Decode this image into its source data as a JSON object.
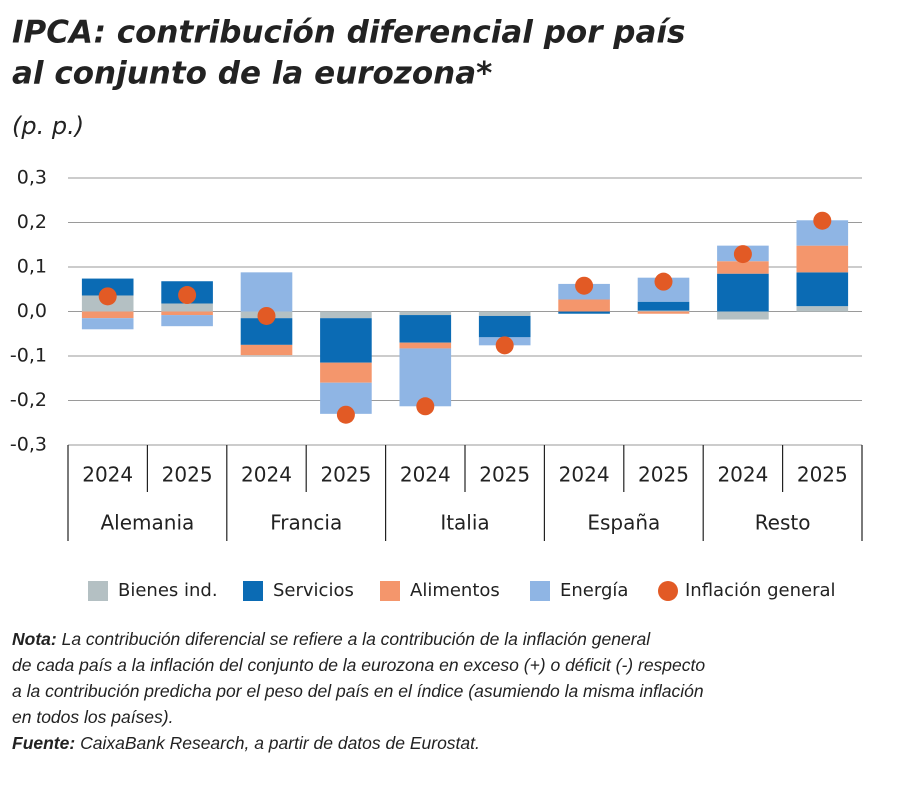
{
  "chart_data": {
    "type": "stacked-bar",
    "title_lines": [
      "IPCA: contribución diferencial por país",
      "al conjunto de la eurozona*"
    ],
    "subtitle": "(p. p.)",
    "categories": [
      "2024",
      "2025",
      "2024",
      "2025",
      "2024",
      "2025",
      "2024",
      "2025",
      "2024",
      "2025"
    ],
    "groups": [
      "Alemania",
      "Francia",
      "Italia",
      "España",
      "Resto"
    ],
    "series": [
      {
        "name": "Bienes ind.",
        "color": "#b4c0c3",
        "values": [
          0.036,
          0.018,
          -0.015,
          -0.015,
          -0.008,
          -0.01,
          0,
          0.002,
          -0.018,
          0.012
        ]
      },
      {
        "name": "Servicios",
        "color": "#0b6bb4",
        "values": [
          0.038,
          0.05,
          -0.06,
          -0.1,
          -0.062,
          -0.048,
          -0.005,
          0.02,
          0.085,
          0.076
        ]
      },
      {
        "name": "Alimentos",
        "color": "#f4966c",
        "values": [
          -0.015,
          -0.008,
          -0.023,
          -0.045,
          -0.013,
          0,
          0.027,
          -0.005,
          0.028,
          0.06
        ]
      },
      {
        "name": "Energía",
        "color": "#8fb5e4",
        "values": [
          -0.025,
          -0.025,
          0.088,
          -0.07,
          -0.13,
          -0.018,
          0.035,
          0.054,
          0.035,
          0.057
        ]
      }
    ],
    "dots": {
      "name": "Inflación general",
      "color": "#e25a25",
      "values": [
        0.034,
        0.037,
        -0.01,
        -0.232,
        -0.213,
        -0.076,
        0.058,
        0.067,
        0.129,
        0.204
      ]
    },
    "ylim": [
      -0.3,
      0.3
    ],
    "yticks": [
      {
        "value": -0.3,
        "label": "-0,3"
      },
      {
        "value": -0.2,
        "label": "-0,2"
      },
      {
        "value": -0.1,
        "label": "-0,1"
      },
      {
        "value": 0,
        "label": "0,0"
      },
      {
        "value": 0.1,
        "label": "0,1"
      },
      {
        "value": 0.2,
        "label": "0,2"
      },
      {
        "value": 0.3,
        "label": "0,3"
      }
    ],
    "grid": true,
    "note": {
      "label": "Nota:",
      "lines": [
        "La contribución diferencial se refiere a la contribución de la inflación general",
        "de cada país a la inflación del conjunto de la eurozona en exceso (+) o déficit (-) respecto",
        "a la contribución predicha por el peso del país en el índice (asumiendo la misma inflación",
        "en todos los países)."
      ]
    },
    "source": {
      "label": "Fuente:",
      "text": "CaixaBank Research, a partir de datos de Eurostat."
    }
  }
}
